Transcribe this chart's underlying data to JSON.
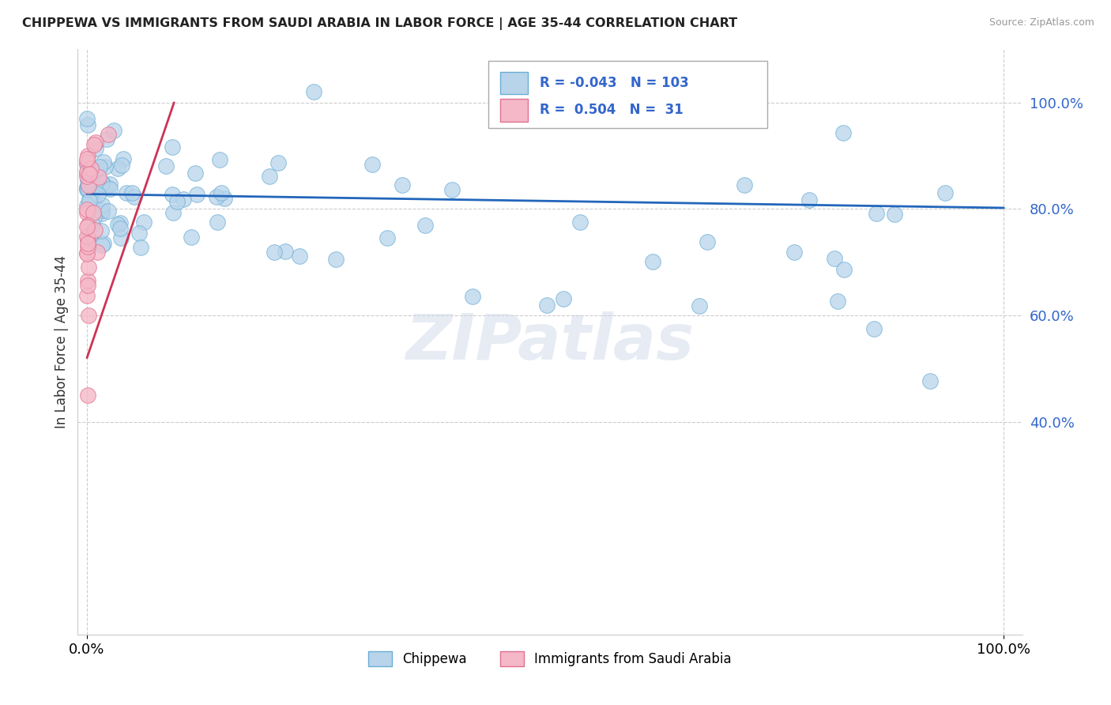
{
  "title": "CHIPPEWA VS IMMIGRANTS FROM SAUDI ARABIA IN LABOR FORCE | AGE 35-44 CORRELATION CHART",
  "source": "Source: ZipAtlas.com",
  "ylabel": "In Labor Force | Age 35-44",
  "r_blue": -0.043,
  "n_blue": 103,
  "r_pink": 0.504,
  "n_pink": 31,
  "legend_labels": [
    "Chippewa",
    "Immigrants from Saudi Arabia"
  ],
  "blue_scatter_color": "#b8d4ea",
  "blue_edge_color": "#6aaed6",
  "pink_scatter_color": "#f4b8c8",
  "pink_edge_color": "#e07090",
  "trendline_blue_color": "#2266bb",
  "trendline_pink_color": "#cc3355",
  "ytick_color": "#3366cc",
  "grid_color": "#cccccc",
  "watermark": "ZIPatlas",
  "title_color": "#222222",
  "source_color": "#999999",
  "xlim": [
    0.0,
    1.0
  ],
  "ylim": [
    0.0,
    1.05
  ],
  "yticks": [
    0.4,
    0.6,
    0.8,
    1.0
  ],
  "ytick_labels": [
    "40.0%",
    "60.0%",
    "80.0%",
    "100.0%"
  ],
  "xtick_labels": [
    "0.0%",
    "100.0%"
  ]
}
